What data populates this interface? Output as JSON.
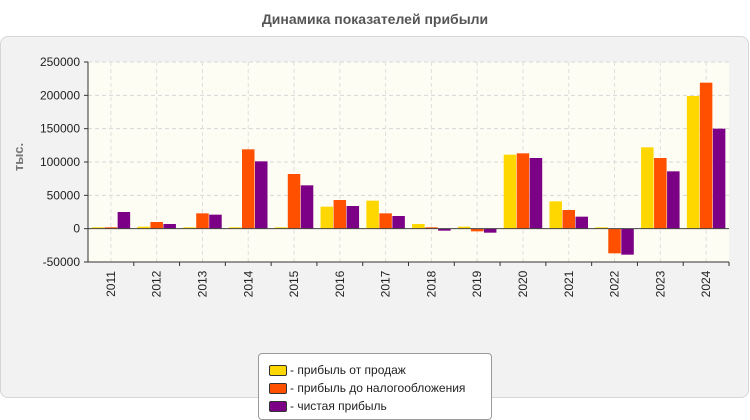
{
  "chart_data": {
    "type": "bar",
    "title": "Динамика показателей прибыли",
    "ylabel": "тыс.",
    "xlabel": "",
    "categories": [
      "2011",
      "2012",
      "2013",
      "2014",
      "2015",
      "2016",
      "2017",
      "2018",
      "2019",
      "2020",
      "2021",
      "2022",
      "2023",
      "2024"
    ],
    "series": [
      {
        "name": "- прибыль от продаж",
        "color": "#ffd700",
        "values": [
          2000,
          3000,
          2000,
          2000,
          2000,
          33000,
          42000,
          7000,
          3000,
          111000,
          41000,
          2000,
          122000,
          199000
        ]
      },
      {
        "name": "- прибыль до налогообложения",
        "color": "#ff5000",
        "values": [
          2000,
          10000,
          23000,
          119000,
          82000,
          43000,
          23000,
          2000,
          -4000,
          113000,
          28000,
          -37000,
          106000,
          219000
        ]
      },
      {
        "name": "- чистая прибыль",
        "color": "#7b0085",
        "values": [
          25000,
          7000,
          21000,
          101000,
          65000,
          34000,
          19000,
          -3000,
          -6000,
          106000,
          18000,
          -39000,
          86000,
          150000
        ]
      }
    ],
    "ylim": [
      -50000,
      250000
    ],
    "yticks": [
      -50000,
      0,
      50000,
      100000,
      150000,
      200000,
      250000
    ],
    "grid": true,
    "legend_position": "bottom"
  }
}
